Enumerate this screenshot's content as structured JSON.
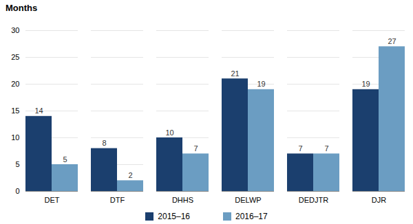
{
  "chart_data": {
    "type": "bar",
    "ylabel": "Months",
    "categories": [
      "DET",
      "DTF",
      "DHHS",
      "DELWP",
      "DEDJTR",
      "DJR"
    ],
    "series": [
      {
        "name": "2015–16",
        "color": "#1B3F6E",
        "values": [
          14,
          8,
          10,
          21,
          7,
          19
        ]
      },
      {
        "name": "2016–17",
        "color": "#6B9DC2",
        "values": [
          5,
          2,
          7,
          19,
          7,
          27
        ]
      }
    ],
    "ylim": [
      0,
      30
    ],
    "yticks": [
      0,
      5,
      10,
      15,
      20,
      25,
      30
    ],
    "grid": true,
    "data_labels": true,
    "legend": "bottom"
  }
}
